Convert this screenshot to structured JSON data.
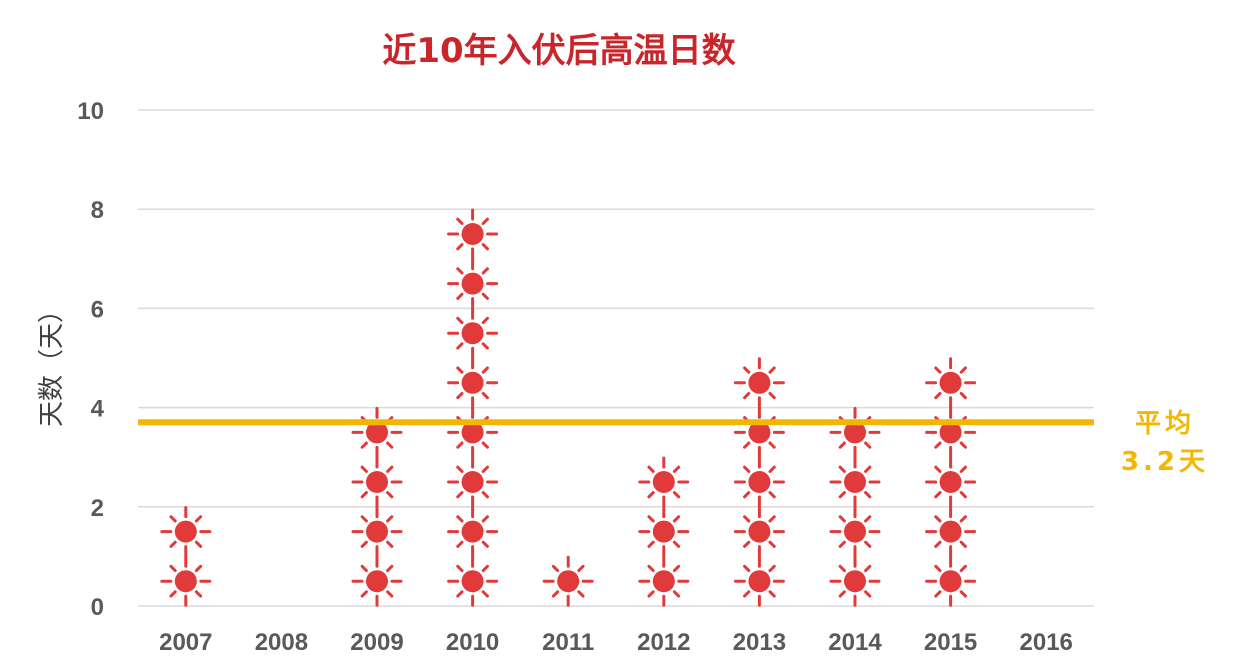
{
  "chart_data": {
    "type": "scatter",
    "title": "近10年入伏后高温日数",
    "ylabel": "天数（天）",
    "xlabel": "",
    "categories": [
      "2007",
      "2008",
      "2009",
      "2010",
      "2011",
      "2012",
      "2013",
      "2014",
      "2015",
      "2016"
    ],
    "values": [
      2,
      0,
      4,
      8,
      1,
      3,
      5,
      4,
      5,
      0
    ],
    "ylim": [
      0,
      10
    ],
    "yticks": [
      0,
      2,
      4,
      6,
      8,
      10
    ],
    "grid": true,
    "marker": "sun-icon",
    "average": {
      "value": 3.2,
      "label_line1": "平均",
      "label_line2": "3.2天"
    },
    "colors": {
      "title": "#c9262c",
      "marker": "#e03a3a",
      "average_line": "#f2b705",
      "grid": "#d9d9d9"
    }
  }
}
